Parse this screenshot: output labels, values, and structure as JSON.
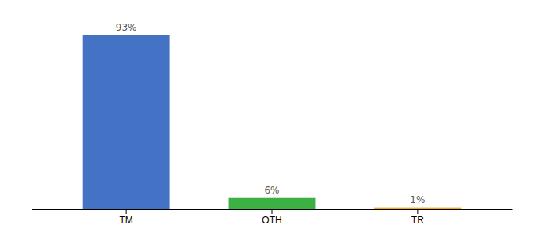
{
  "chart_data": {
    "type": "bar",
    "categories": [
      "TM",
      "OTH",
      "TR"
    ],
    "values": [
      93,
      6,
      1
    ],
    "value_labels": [
      "93%",
      "6%",
      "1%"
    ],
    "colors": [
      "#4472c4",
      "#3cb043",
      "#f5a623"
    ],
    "ylim": [
      0,
      100
    ],
    "tick_labels": "x",
    "data_labels": true
  }
}
